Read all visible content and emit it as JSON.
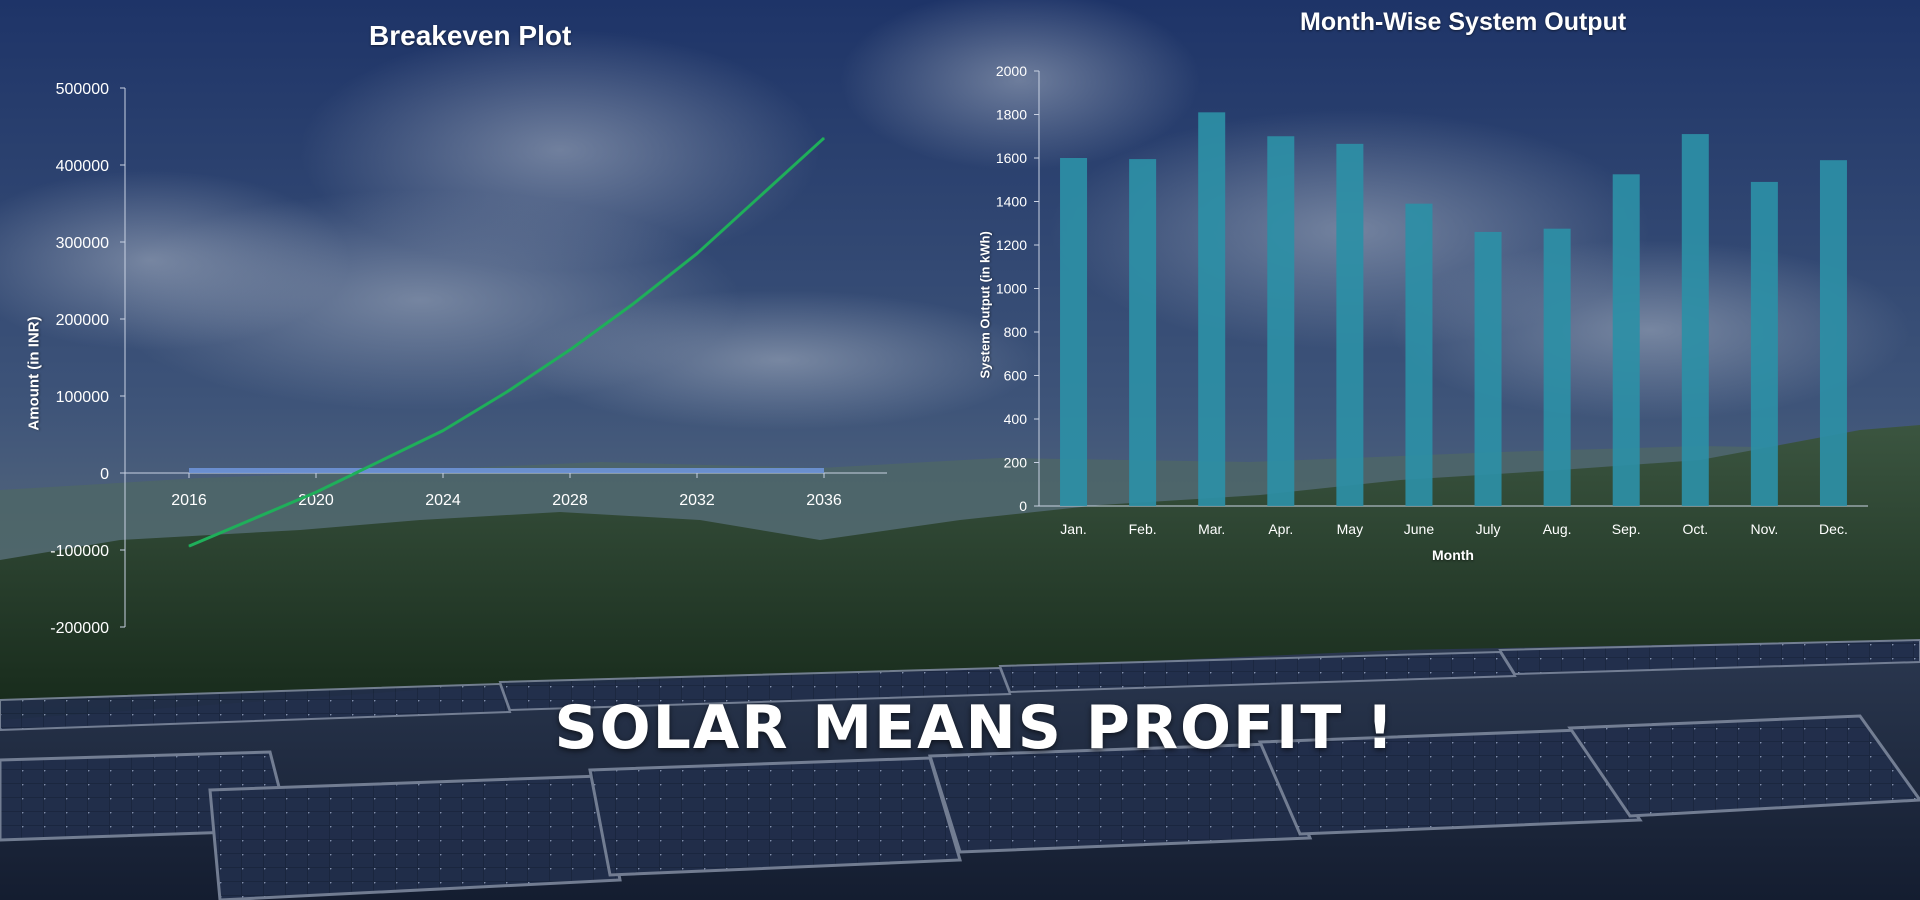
{
  "tagline": "SOLAR MEANS PROFIT !",
  "colors": {
    "line": "#1faf5a",
    "bar": "#2d8fa6",
    "zero_bar": "#6e93d8",
    "axis": "#c9d2e3",
    "sky_top": "#1e3468",
    "sky_mid": "#4f6480",
    "forest": "#223920",
    "panel": "#1c2a44"
  },
  "chart_data": [
    {
      "type": "line",
      "title": "Breakeven Plot",
      "xlabel": "",
      "ylabel": "Amount (in INR)",
      "xlim": [
        2016,
        2036
      ],
      "ylim": [
        -200000,
        500000
      ],
      "x_ticks": [
        "2016",
        "2020",
        "2024",
        "2028",
        "2032",
        "2036"
      ],
      "y_ticks": [
        "500000",
        "400000",
        "300000",
        "200000",
        "100000",
        "0",
        "-100000",
        "-200000"
      ],
      "series": [
        {
          "x": [
            2016,
            2018,
            2020,
            2022,
            2024,
            2026,
            2028,
            2030,
            2032,
            2034,
            2036
          ],
          "values": [
            -95000,
            -60000,
            -25000,
            15000,
            55000,
            105000,
            160000,
            220000,
            285000,
            360000,
            435000
          ]
        }
      ],
      "grid": false
    },
    {
      "type": "bar",
      "title": "Month-Wise System Output",
      "xlabel": "Month",
      "ylabel": "System Output (in kWh)",
      "ylim": [
        0,
        2000
      ],
      "y_ticks": [
        "2000",
        "1800",
        "1600",
        "1400",
        "1200",
        "1000",
        "800",
        "600",
        "400",
        "200",
        "0"
      ],
      "categories": [
        "Jan.",
        "Feb.",
        "Mar.",
        "Apr.",
        "May",
        "June",
        "July",
        "Aug.",
        "Sep.",
        "Oct.",
        "Nov.",
        "Dec."
      ],
      "values": [
        1600,
        1595,
        1810,
        1700,
        1665,
        1390,
        1260,
        1275,
        1525,
        1710,
        1490,
        1590
      ],
      "grid": false
    }
  ]
}
